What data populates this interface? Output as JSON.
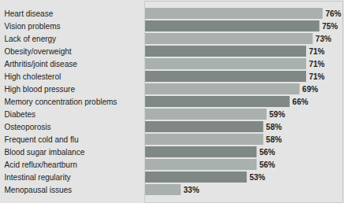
{
  "chart_data": {
    "type": "bar",
    "orientation": "horizontal",
    "categories": [
      "Heart disease",
      "Vision problems",
      "Lack of energy",
      "Obesity/overweight",
      "Arthritis/joint disease",
      "High cholesterol",
      "High blood pressure",
      "Memory concentration problems",
      "Diabetes",
      "Osteoporosis",
      "Frequent cold and flu",
      "Blood sugar imbalance",
      "Acid reflux/heartburn",
      "Intestinal regularity",
      "Menopausal issues"
    ],
    "values": [
      76,
      75,
      73,
      71,
      71,
      71,
      69,
      66,
      59,
      58,
      58,
      56,
      56,
      53,
      33
    ],
    "value_labels": [
      "76%",
      "75%",
      "73%",
      "71%",
      "71%",
      "71%",
      "69%",
      "66%",
      "59%",
      "58%",
      "58%",
      "56%",
      "56%",
      "53%",
      "33%"
    ],
    "colors": [
      "#a9b0ad",
      "#7f8884",
      "#a9b0ad",
      "#7f8884",
      "#a9b0ad",
      "#7f8884",
      "#a9b0ad",
      "#7f8884",
      "#a9b0ad",
      "#7f8884",
      "#a9b0ad",
      "#7f8884",
      "#a9b0ad",
      "#7f8884",
      "#a9b0ad"
    ],
    "xlim": [
      22,
      82
    ],
    "data_labels": true,
    "tick_labels": "y",
    "grid": false
  }
}
